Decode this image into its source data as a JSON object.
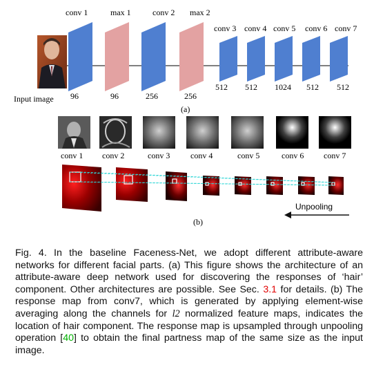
{
  "figure": {
    "panel_a": {
      "input_label": "Input image",
      "panel_label": "(a)",
      "layers": [
        {
          "name": "conv 1",
          "channels": "96",
          "color": "#4f7fd0"
        },
        {
          "name": "max 1",
          "channels": "96",
          "color": "#e3a2a2"
        },
        {
          "name": "conv 2",
          "channels": "256",
          "color": "#4f7fd0"
        },
        {
          "name": "max 2",
          "channels": "256",
          "color": "#e3a2a2"
        },
        {
          "name": "conv 3",
          "channels": "512",
          "color": "#4f7fd0"
        },
        {
          "name": "conv 4",
          "channels": "512",
          "color": "#4f7fd0"
        },
        {
          "name": "conv 5",
          "channels": "1024",
          "color": "#4f7fd0"
        },
        {
          "name": "conv 6",
          "channels": "512",
          "color": "#4f7fd0"
        },
        {
          "name": "conv 7",
          "channels": "512",
          "color": "#4f7fd0"
        }
      ]
    },
    "panel_b": {
      "panel_label": "(b)",
      "feature_labels": [
        "conv 1",
        "conv 2",
        "conv 3",
        "conv 4",
        "conv 5",
        "conv 6",
        "conv 7"
      ],
      "unpooling_label": "Unpooling",
      "link_color": "#2ed6d6",
      "heat_color": "#e01010"
    }
  },
  "caption": {
    "part1": "Fig. 4. In the baseline Faceness-Net, we adopt different attribute-aware networks for different facial parts. (a) This figure shows the architecture of an attribute-aware deep network used for discovering the responses of ‘hair’ component. Other architectures are possible. See Sec. ",
    "ref_sec": "3.1",
    "part2": " for details. (b) The response map from conv7, which is generated by applying element-wise averaging along the channels for ",
    "l2": "l2",
    "part3": " normalized feature maps, indicates the location of hair component. The response map is upsampled through unpooling operation [",
    "ref_cite": "40",
    "part4": "] to obtain the final partness map of the same size as the input image."
  }
}
